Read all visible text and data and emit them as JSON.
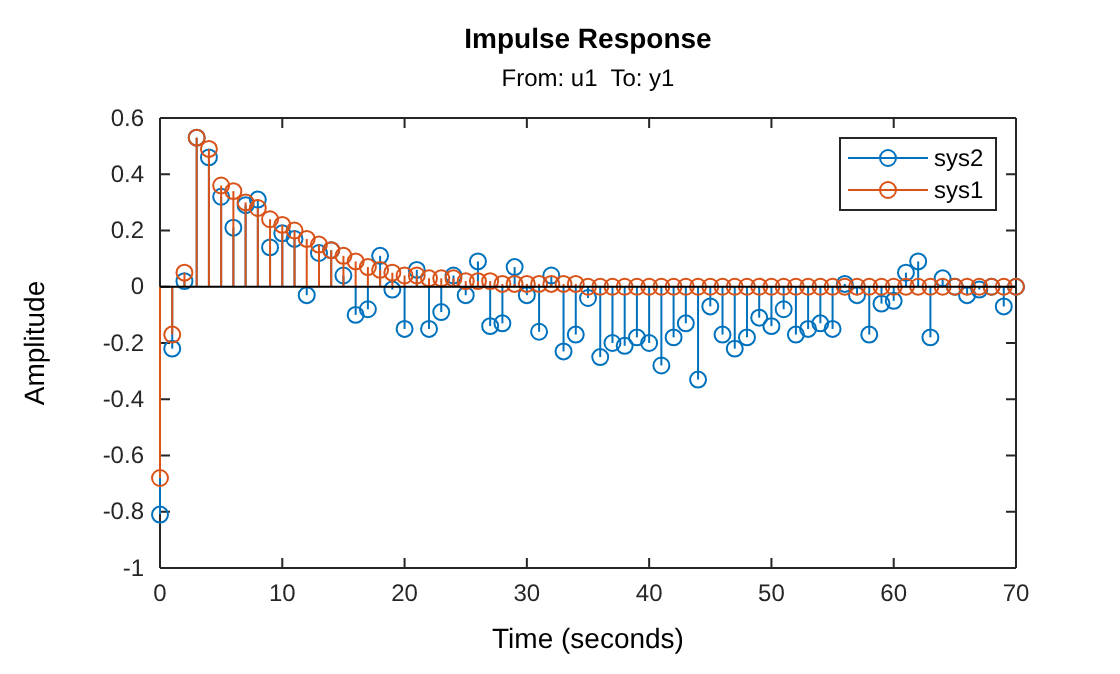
{
  "chart_data": {
    "type": "lollipop",
    "title": "Impulse Response",
    "subtitle": "From: u1  To: y1",
    "xlabel": "Time (seconds)",
    "ylabel": "Amplitude",
    "x": [
      0,
      1,
      2,
      3,
      4,
      5,
      6,
      7,
      8,
      9,
      10,
      11,
      12,
      13,
      14,
      15,
      16,
      17,
      18,
      19,
      20,
      21,
      22,
      23,
      24,
      25,
      26,
      27,
      28,
      29,
      30,
      31,
      32,
      33,
      34,
      35,
      36,
      37,
      38,
      39,
      40,
      41,
      42,
      43,
      44,
      45,
      46,
      47,
      48,
      49,
      50,
      51,
      52,
      53,
      54,
      55,
      56,
      57,
      58,
      59,
      60,
      61,
      62,
      63,
      64,
      65,
      66,
      67,
      68,
      69,
      70
    ],
    "series": [
      {
        "name": "sys2",
        "color": "#0072bd",
        "values": [
          -0.81,
          -0.22,
          0.02,
          0.53,
          0.46,
          0.32,
          0.21,
          0.29,
          0.31,
          0.14,
          0.19,
          0.17,
          -0.03,
          0.12,
          0.13,
          0.04,
          -0.1,
          -0.08,
          0.11,
          -0.01,
          -0.15,
          0.06,
          -0.15,
          -0.09,
          0.04,
          -0.03,
          0.09,
          -0.14,
          -0.13,
          0.07,
          -0.03,
          -0.16,
          0.04,
          -0.23,
          -0.17,
          -0.04,
          -0.25,
          -0.2,
          -0.21,
          -0.18,
          -0.2,
          -0.28,
          -0.18,
          -0.13,
          -0.33,
          -0.07,
          -0.17,
          -0.22,
          -0.18,
          -0.11,
          -0.14,
          -0.08,
          -0.17,
          -0.15,
          -0.13,
          -0.15,
          0.01,
          -0.03,
          -0.17,
          -0.06,
          -0.05,
          0.05,
          0.09,
          -0.18,
          0.03,
          0,
          -0.03,
          -0.01,
          0,
          -0.07,
          0
        ]
      },
      {
        "name": "sys1",
        "color": "#d95319",
        "values": [
          -0.68,
          -0.17,
          0.05,
          0.53,
          0.49,
          0.36,
          0.34,
          0.3,
          0.28,
          0.24,
          0.22,
          0.2,
          0.17,
          0.15,
          0.13,
          0.11,
          0.09,
          0.07,
          0.06,
          0.05,
          0.04,
          0.04,
          0.03,
          0.03,
          0.03,
          0.02,
          0.02,
          0.02,
          0.01,
          0.01,
          0.01,
          0.01,
          0.01,
          0.01,
          0.01,
          0,
          0,
          0,
          0,
          0,
          0,
          0,
          0,
          0,
          0,
          0,
          0,
          0,
          0,
          0,
          0,
          0,
          0,
          0,
          0,
          0,
          0,
          0,
          0,
          0,
          0,
          0,
          0,
          0,
          0,
          0,
          0,
          0,
          0,
          0,
          0
        ]
      }
    ],
    "xlim": [
      0,
      70
    ],
    "xticks": [
      0,
      10,
      20,
      30,
      40,
      50,
      60,
      70
    ],
    "ylim": [
      -1,
      0.6
    ],
    "yticks": [
      -1,
      -0.8,
      -0.6,
      -0.4,
      -0.2,
      0,
      0.2,
      0.4,
      0.6
    ],
    "ref_lines": [
      {
        "axis": "y",
        "value": 0,
        "color": "#000000"
      }
    ],
    "marker": "circle",
    "legend": "top right",
    "grid": false
  }
}
